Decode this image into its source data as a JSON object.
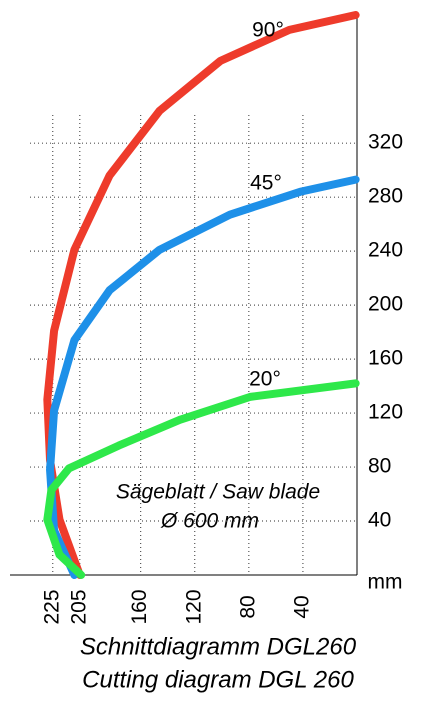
{
  "chart_data": {
    "type": "line",
    "xlim": [
      264,
      0
    ],
    "ylim": [
      0,
      415
    ],
    "xticks": [
      225,
      205,
      160,
      120,
      80,
      40
    ],
    "xtick_colors": [
      "#e8372a",
      "#e8372a",
      "#000000",
      "#000000",
      "#000000",
      "#000000"
    ],
    "yticks": [
      40,
      80,
      120,
      160,
      200,
      240,
      280,
      320
    ],
    "y_unit": "mm",
    "grid": true,
    "annotations": [
      "Sägeblatt / Saw blade",
      "Ø 600 mm"
    ],
    "caption": [
      "Schnittdiagramm DGL260",
      "Cutting diagram DGL 260"
    ],
    "series": [
      {
        "name": "90°",
        "color": "#ee3b2b",
        "x": [
          205,
          220,
          227,
          229,
          224,
          209,
          183,
          146,
          101,
          50,
          1
        ],
        "values": [
          0,
          41,
          85,
          130,
          181,
          241,
          296,
          344,
          381,
          404,
          415
        ]
      },
      {
        "name": "45°",
        "color": "#1e90e8",
        "x": [
          209,
          224,
          227,
          224,
          209,
          183,
          146,
          94,
          42,
          1
        ],
        "values": [
          0,
          33,
          78,
          122,
          174,
          211,
          241,
          267,
          284,
          293
        ]
      },
      {
        "name": "20°",
        "color": "#2ee84a",
        "x": [
          204,
          220,
          229,
          226,
          213,
          176,
          131,
          79,
          1
        ],
        "values": [
          0,
          15,
          41,
          63,
          79,
          96,
          115,
          132,
          142
        ]
      }
    ]
  }
}
